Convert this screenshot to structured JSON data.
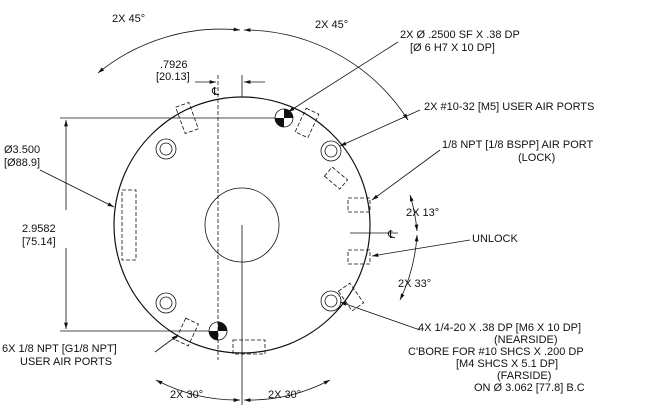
{
  "dimensions": {
    "angle_top_left": "2X 45°",
    "angle_top_right": "2X 45°",
    "offset": [
      ".7926",
      "[20.13]"
    ],
    "diameter": [
      "Ø3.500",
      "[Ø88.9]"
    ],
    "height": [
      "2.9582",
      "[75.14]"
    ],
    "angle_lock": "2X 13°",
    "angle_unlock": "2X 33°",
    "angle_bottom_left": "2X 30°",
    "angle_bottom_right": "2X 30°"
  },
  "centerline_marks": [
    "℄",
    "℄"
  ],
  "callouts": {
    "dowel_holes": [
      "2X Ø .2500 SF X .38 DP",
      "[Ø 6 H7 X 10 DP]"
    ],
    "m5_ports": [
      "2X #10-32 [M5] USER AIR PORTS"
    ],
    "lock_port": [
      "1/8 NPT [1/8 BSPP] AIR PORT",
      "(LOCK)"
    ],
    "unlock_port": [
      "UNLOCK"
    ],
    "mounting": [
      "4X 1/4-20 X .38 DP [M6 X 10 DP]",
      "(NEARSIDE)",
      "C'BORE FOR #10 SHCS X .200 DP",
      "[M4 SHCS X 5.1 DP]",
      "(FARSIDE)",
      "ON Ø 3.062 [77.8] B.C"
    ],
    "user_ports": [
      "6X 1/8 NPT [G1/8 NPT]",
      "USER AIR PORTS"
    ]
  }
}
